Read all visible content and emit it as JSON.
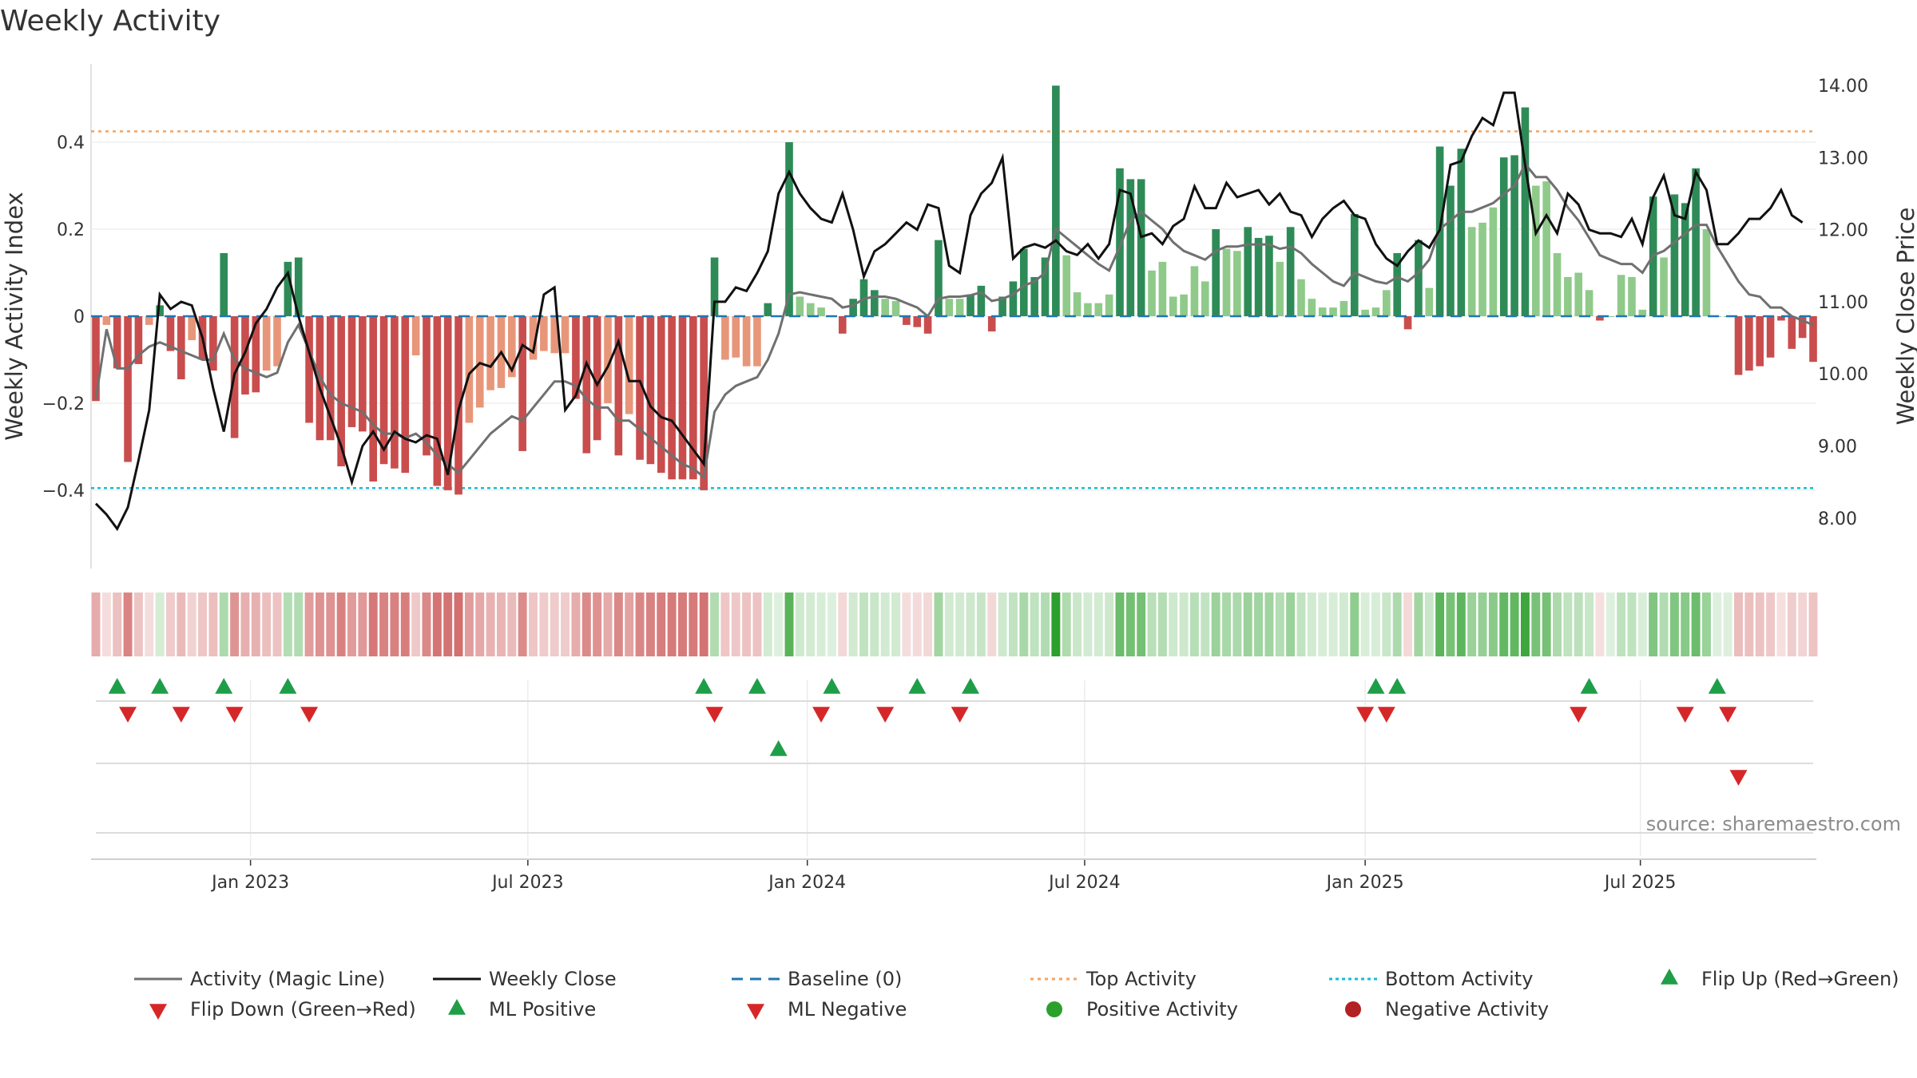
{
  "chart_data": {
    "type": "bar",
    "title": "Weekly Activity",
    "ylabel_left": "Weekly Activity Index",
    "ylabel_right": "Weekly Close Price",
    "source": "source: sharemaestro.com",
    "ylim_left": [
      -0.58,
      0.58
    ],
    "ylim_right": [
      7.3,
      14.3
    ],
    "yticks_left": [
      {
        "value": 0.4,
        "label": "0.4"
      },
      {
        "value": 0.2,
        "label": "0.2"
      },
      {
        "value": 0,
        "label": "0"
      },
      {
        "value": -0.2,
        "label": "−0.2"
      },
      {
        "value": -0.4,
        "label": "−0.4"
      }
    ],
    "yticks_right": [
      {
        "value": 14,
        "label": "14.00"
      },
      {
        "value": 13,
        "label": "13.00"
      },
      {
        "value": 12,
        "label": "12.00"
      },
      {
        "value": 11,
        "label": "11.00"
      },
      {
        "value": 10,
        "label": "10.00"
      },
      {
        "value": 9,
        "label": "9.00"
      },
      {
        "value": 8,
        "label": "8.00"
      }
    ],
    "xticks": [
      {
        "week": 14.5,
        "label": "Jan 2023"
      },
      {
        "week": 40.5,
        "label": "Jul 2023"
      },
      {
        "week": 66.7,
        "label": "Jan 2024"
      },
      {
        "week": 92.7,
        "label": "Jul 2024"
      },
      {
        "week": 119,
        "label": "Jan 2025"
      },
      {
        "week": 144.8,
        "label": "Jul 2025"
      }
    ],
    "top_activity": 0.425,
    "bottom_activity": -0.395,
    "baseline": 0,
    "colors": {
      "neg_strong": "#c94d4d",
      "neg_light": "#e8967a",
      "pos_strong": "#2e8b57",
      "pos_light": "#8fca8a",
      "magic_line": "#707070",
      "close_line": "#111111",
      "baseline": "#1f77b4",
      "top": "#f4a460",
      "bottom": "#17becf",
      "flip_up": "#1e9e48",
      "flip_down": "#d62728",
      "pos_dot": "#2ca02c",
      "neg_dot": "#b22222"
    },
    "activity": [
      -0.195,
      -0.02,
      -0.12,
      -0.335,
      -0.11,
      -0.02,
      0.025,
      -0.08,
      -0.145,
      -0.055,
      -0.1,
      -0.125,
      0.145,
      -0.28,
      -0.18,
      -0.175,
      -0.125,
      -0.115,
      0.125,
      0.135,
      -0.245,
      -0.285,
      -0.285,
      -0.345,
      -0.255,
      -0.265,
      -0.38,
      -0.34,
      -0.35,
      -0.36,
      -0.09,
      -0.32,
      -0.39,
      -0.4,
      -0.41,
      -0.245,
      -0.21,
      -0.17,
      -0.165,
      -0.14,
      -0.31,
      -0.1,
      -0.08,
      -0.085,
      -0.085,
      -0.19,
      -0.315,
      -0.285,
      -0.2,
      -0.32,
      -0.225,
      -0.33,
      -0.34,
      -0.36,
      -0.375,
      -0.375,
      -0.375,
      -0.4,
      0.135,
      -0.1,
      -0.095,
      -0.115,
      -0.115,
      0.03,
      0.0,
      0.4,
      0.045,
      0.03,
      0.02,
      0.0,
      -0.04,
      0.04,
      0.085,
      0.06,
      0.04,
      0.035,
      -0.02,
      -0.025,
      -0.04,
      0.175,
      0.04,
      0.04,
      0.05,
      0.07,
      -0.035,
      0.045,
      0.08,
      0.155,
      0.09,
      0.135,
      0.53,
      0.14,
      0.055,
      0.03,
      0.03,
      0.05,
      0.34,
      0.315,
      0.315,
      0.105,
      0.125,
      0.045,
      0.05,
      0.115,
      0.08,
      0.2,
      0.155,
      0.15,
      0.205,
      0.18,
      0.185,
      0.125,
      0.205,
      0.085,
      0.04,
      0.02,
      0.02,
      0.035,
      0.235,
      0.015,
      0.02,
      0.06,
      0.145,
      -0.03,
      0.175,
      0.065,
      0.39,
      0.3,
      0.385,
      0.205,
      0.215,
      0.25,
      0.365,
      0.37,
      0.48,
      0.3,
      0.31,
      0.145,
      0.09,
      0.1,
      0.06,
      -0.01,
      0.0,
      0.095,
      0.09,
      0.015,
      0.275,
      0.135,
      0.28,
      0.26,
      0.34,
      0.2,
      0.0,
      0.0,
      -0.135,
      -0.125,
      -0.115,
      -0.095,
      -0.01,
      -0.075,
      -0.05,
      -0.105
    ],
    "magic_line": [
      -0.19,
      -0.03,
      -0.12,
      -0.12,
      -0.09,
      -0.07,
      -0.06,
      -0.07,
      -0.08,
      -0.09,
      -0.1,
      -0.1,
      -0.04,
      -0.1,
      -0.12,
      -0.13,
      -0.14,
      -0.13,
      -0.06,
      -0.02,
      -0.08,
      -0.14,
      -0.18,
      -0.2,
      -0.21,
      -0.22,
      -0.25,
      -0.27,
      -0.27,
      -0.28,
      -0.27,
      -0.29,
      -0.32,
      -0.34,
      -0.36,
      -0.33,
      -0.3,
      -0.27,
      -0.25,
      -0.23,
      -0.24,
      -0.21,
      -0.18,
      -0.15,
      -0.15,
      -0.16,
      -0.19,
      -0.21,
      -0.21,
      -0.24,
      -0.24,
      -0.26,
      -0.28,
      -0.3,
      -0.32,
      -0.34,
      -0.35,
      -0.37,
      -0.22,
      -0.18,
      -0.16,
      -0.15,
      -0.14,
      -0.1,
      -0.04,
      0.05,
      0.055,
      0.05,
      0.045,
      0.04,
      0.02,
      0.025,
      0.04,
      0.045,
      0.045,
      0.04,
      0.03,
      0.02,
      0.0,
      0.04,
      0.045,
      0.045,
      0.048,
      0.055,
      0.035,
      0.04,
      0.05,
      0.07,
      0.08,
      0.1,
      0.2,
      0.18,
      0.16,
      0.14,
      0.12,
      0.105,
      0.16,
      0.22,
      0.24,
      0.22,
      0.2,
      0.17,
      0.15,
      0.14,
      0.13,
      0.15,
      0.16,
      0.16,
      0.165,
      0.165,
      0.165,
      0.155,
      0.16,
      0.145,
      0.12,
      0.1,
      0.08,
      0.07,
      0.1,
      0.09,
      0.08,
      0.075,
      0.09,
      0.08,
      0.1,
      0.13,
      0.2,
      0.22,
      0.24,
      0.24,
      0.25,
      0.26,
      0.28,
      0.3,
      0.35,
      0.32,
      0.32,
      0.29,
      0.25,
      0.22,
      0.18,
      0.14,
      0.13,
      0.12,
      0.12,
      0.1,
      0.14,
      0.15,
      0.17,
      0.19,
      0.21,
      0.21,
      0.16,
      0.12,
      0.08,
      0.05,
      0.045,
      0.02,
      0.02,
      0.0,
      -0.01,
      -0.02
    ],
    "close": [
      8.2,
      8.05,
      7.85,
      8.15,
      8.8,
      9.5,
      11.1,
      10.9,
      11.0,
      10.95,
      10.5,
      9.8,
      9.2,
      10.0,
      10.3,
      10.7,
      10.9,
      11.2,
      11.4,
      10.8,
      10.3,
      9.8,
      9.4,
      9.0,
      8.5,
      9.0,
      9.2,
      8.95,
      9.2,
      9.1,
      9.05,
      9.15,
      9.1,
      8.6,
      9.5,
      10.0,
      10.15,
      10.1,
      10.3,
      10.05,
      10.4,
      10.3,
      11.1,
      11.2,
      9.5,
      9.7,
      10.15,
      9.85,
      10.1,
      10.45,
      9.9,
      9.9,
      9.55,
      9.4,
      9.35,
      9.15,
      8.95,
      8.75,
      11.0,
      11.0,
      11.2,
      11.15,
      11.4,
      11.7,
      12.5,
      12.8,
      12.5,
      12.3,
      12.15,
      12.1,
      12.5,
      12.0,
      11.35,
      11.7,
      11.8,
      11.95,
      12.1,
      12.0,
      12.35,
      12.3,
      11.5,
      11.4,
      12.2,
      12.5,
      12.65,
      13.0,
      11.6,
      11.75,
      11.8,
      11.75,
      11.85,
      11.7,
      11.65,
      11.8,
      11.6,
      11.8,
      12.55,
      12.5,
      11.9,
      11.95,
      11.8,
      12.05,
      12.15,
      12.6,
      12.3,
      12.3,
      12.65,
      12.45,
      12.5,
      12.55,
      12.35,
      12.5,
      12.25,
      12.2,
      11.9,
      12.15,
      12.3,
      12.4,
      12.2,
      12.15,
      11.8,
      11.6,
      11.5,
      11.7,
      11.85,
      11.75,
      12.0,
      12.9,
      12.95,
      13.3,
      13.55,
      13.45,
      13.9,
      13.9,
      12.9,
      11.95,
      12.2,
      11.95,
      12.5,
      12.35,
      12.0,
      11.95,
      11.95,
      11.9,
      12.15,
      11.8,
      12.45,
      12.75,
      12.2,
      12.15,
      12.8,
      12.55,
      11.8,
      11.8,
      11.95,
      12.15,
      12.15,
      12.3,
      12.55,
      12.2,
      12.1
    ],
    "flip_up_weeks": [
      2,
      6,
      12,
      18,
      57,
      62,
      69,
      77,
      82,
      120,
      122,
      140,
      152
    ],
    "flip_down_weeks": [
      3,
      8,
      13,
      20,
      58,
      68,
      74,
      81,
      119,
      121,
      139,
      149,
      153
    ],
    "ml_positive_weeks": [
      64
    ],
    "ml_negative_weeks": [
      154
    ],
    "legend": [
      {
        "key": "magic",
        "label": "Activity (Magic Line)"
      },
      {
        "key": "close",
        "label": "Weekly Close"
      },
      {
        "key": "baseline",
        "label": "Baseline (0)"
      },
      {
        "key": "top",
        "label": "Top Activity"
      },
      {
        "key": "bottom",
        "label": "Bottom Activity"
      },
      {
        "key": "flipup",
        "label": "Flip Up (Red→Green)"
      },
      {
        "key": "flipdown",
        "label": "Flip Down (Green→Red)"
      },
      {
        "key": "mlpos",
        "label": "ML Positive"
      },
      {
        "key": "mlneg",
        "label": "ML Negative"
      },
      {
        "key": "posdot",
        "label": "Positive Activity"
      },
      {
        "key": "negdot",
        "label": "Negative Activity"
      }
    ]
  }
}
